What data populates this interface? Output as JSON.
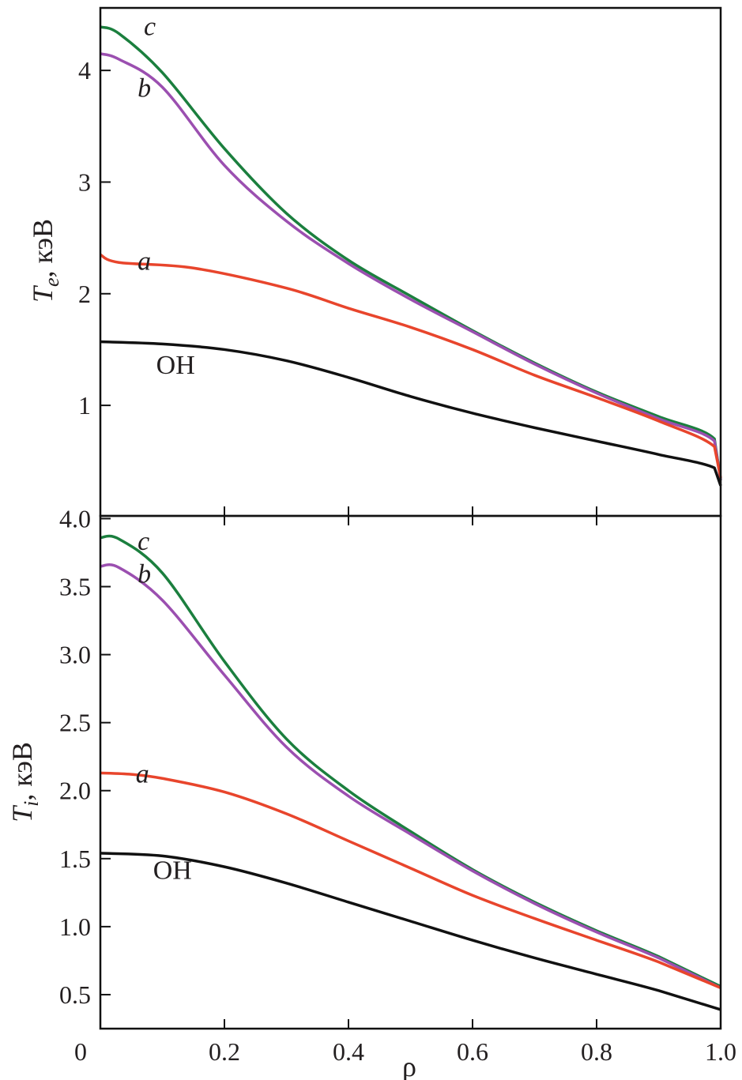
{
  "chart_data": [
    {
      "type": "line",
      "panel": "top",
      "ylabel_main": "T",
      "ylabel_sub": "e",
      "ylabel_unit": ", кэВ",
      "xlim": [
        0,
        1.0
      ],
      "ylim": [
        0.01,
        4.56
      ],
      "yticks": [
        1,
        2,
        3,
        4
      ],
      "ytick_labels": [
        "1",
        "2",
        "3",
        "4"
      ],
      "series": [
        {
          "name": "c",
          "color": "#1b7f3e",
          "label_at": [
            0.07,
            4.4
          ],
          "x": [
            0,
            0.03,
            0.1,
            0.2,
            0.3,
            0.4,
            0.5,
            0.6,
            0.7,
            0.8,
            0.9,
            0.99,
            1.0
          ],
          "y": [
            4.39,
            4.33,
            3.98,
            3.3,
            2.72,
            2.3,
            1.98,
            1.67,
            1.38,
            1.12,
            0.9,
            0.7,
            0.33
          ]
        },
        {
          "name": "b",
          "color": "#9b4fb0",
          "label_at": [
            0.06,
            3.85
          ],
          "x": [
            0,
            0.03,
            0.1,
            0.2,
            0.3,
            0.4,
            0.5,
            0.6,
            0.7,
            0.8,
            0.9,
            0.99,
            1.0
          ],
          "y": [
            4.15,
            4.1,
            3.85,
            3.15,
            2.65,
            2.27,
            1.95,
            1.66,
            1.37,
            1.11,
            0.88,
            0.68,
            0.33
          ]
        },
        {
          "name": "a",
          "color": "#e8452c",
          "label_at": [
            0.06,
            2.3
          ],
          "x": [
            0,
            0.03,
            0.15,
            0.3,
            0.4,
            0.5,
            0.6,
            0.7,
            0.8,
            0.9,
            0.99,
            1.0
          ],
          "y": [
            2.35,
            2.28,
            2.23,
            2.05,
            1.87,
            1.7,
            1.5,
            1.27,
            1.07,
            0.86,
            0.63,
            0.35
          ]
        },
        {
          "name": "OH",
          "color": "#111111",
          "label_at": [
            0.09,
            1.37
          ],
          "x": [
            0,
            0.1,
            0.2,
            0.3,
            0.4,
            0.5,
            0.6,
            0.7,
            0.8,
            0.9,
            0.99,
            1.0
          ],
          "y": [
            1.57,
            1.55,
            1.5,
            1.4,
            1.25,
            1.08,
            0.93,
            0.8,
            0.68,
            0.56,
            0.44,
            0.28
          ]
        }
      ]
    },
    {
      "type": "line",
      "panel": "bottom",
      "ylabel_main": "T",
      "ylabel_sub": "i",
      "ylabel_unit": ", кэВ",
      "xlabel": "ρ",
      "xlim": [
        0,
        1.0
      ],
      "ylim": [
        0.25,
        4.02
      ],
      "yticks": [
        0.5,
        1.0,
        1.5,
        2.0,
        2.5,
        3.0,
        3.5,
        4.0
      ],
      "ytick_labels": [
        "0.5",
        "1.0",
        "1.5",
        "2.0",
        "2.5",
        "3.0",
        "3.5",
        "4.0"
      ],
      "xticks": [
        0,
        0.2,
        0.4,
        0.6,
        0.8,
        1.0
      ],
      "xtick_labels": [
        "0",
        "0.2",
        "0.4",
        "0.6",
        "0.8",
        "1.0"
      ],
      "series": [
        {
          "name": "c",
          "color": "#1b7f3e",
          "label_at": [
            0.06,
            3.84
          ],
          "x": [
            0,
            0.03,
            0.1,
            0.2,
            0.3,
            0.4,
            0.5,
            0.6,
            0.7,
            0.8,
            0.9,
            1.0
          ],
          "y": [
            3.86,
            3.85,
            3.6,
            2.95,
            2.38,
            2.0,
            1.7,
            1.42,
            1.18,
            0.97,
            0.78,
            0.56
          ]
        },
        {
          "name": "b",
          "color": "#9b4fb0",
          "label_at": [
            0.06,
            3.6
          ],
          "x": [
            0,
            0.03,
            0.1,
            0.2,
            0.3,
            0.4,
            0.5,
            0.6,
            0.7,
            0.8,
            0.9,
            1.0
          ],
          "y": [
            3.65,
            3.64,
            3.4,
            2.85,
            2.32,
            1.96,
            1.68,
            1.41,
            1.17,
            0.96,
            0.77,
            0.55
          ]
        },
        {
          "name": "a",
          "color": "#e8452c",
          "label_at": [
            0.057,
            2.13
          ],
          "x": [
            0,
            0.05,
            0.1,
            0.2,
            0.3,
            0.4,
            0.5,
            0.6,
            0.7,
            0.8,
            0.9,
            1.0
          ],
          "y": [
            2.13,
            2.12,
            2.09,
            1.99,
            1.83,
            1.63,
            1.43,
            1.23,
            1.06,
            0.9,
            0.74,
            0.55
          ]
        },
        {
          "name": "OH",
          "color": "#111111",
          "label_at": [
            0.085,
            1.42
          ],
          "x": [
            0,
            0.1,
            0.2,
            0.3,
            0.4,
            0.5,
            0.6,
            0.7,
            0.8,
            0.9,
            1.0
          ],
          "y": [
            1.54,
            1.52,
            1.44,
            1.32,
            1.18,
            1.04,
            0.9,
            0.77,
            0.65,
            0.53,
            0.39
          ]
        }
      ]
    }
  ]
}
